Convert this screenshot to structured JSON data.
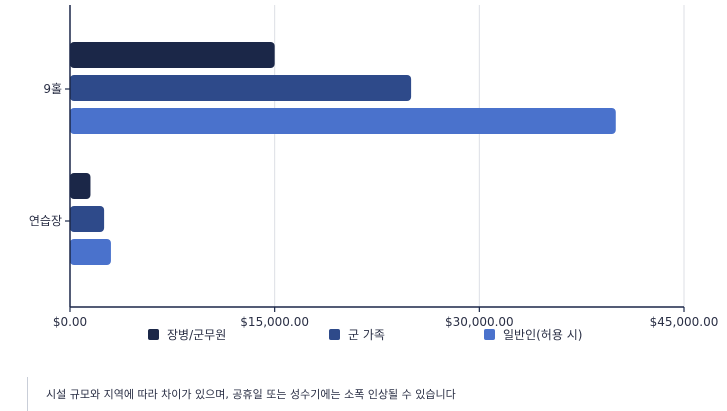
{
  "chart_data": {
    "type": "bar",
    "orientation": "horizontal",
    "categories": [
      "9홀",
      "연습장"
    ],
    "series": [
      {
        "name": "장병/군무원",
        "values": [
          15000,
          1500
        ],
        "color": "#1b2748"
      },
      {
        "name": "군 가족",
        "values": [
          25000,
          2500
        ],
        "color": "#2e4a8a"
      },
      {
        "name": "일반인(허용 시)",
        "values": [
          40000,
          3000
        ],
        "color": "#4a72cc"
      }
    ],
    "x_ticks": [
      0,
      15000,
      30000,
      45000
    ],
    "x_tick_labels": [
      "$0.00",
      "$15,000.00",
      "$30,000.00",
      "$45,000.00"
    ],
    "xlim": [
      0,
      45000
    ],
    "grid": "vertical",
    "legend_position": "bottom"
  },
  "footnote": "시설 규모와 지역에 따라 차이가 있으며, 공휴일 또는 성수기에는 소폭 인상될 수 있습니다"
}
